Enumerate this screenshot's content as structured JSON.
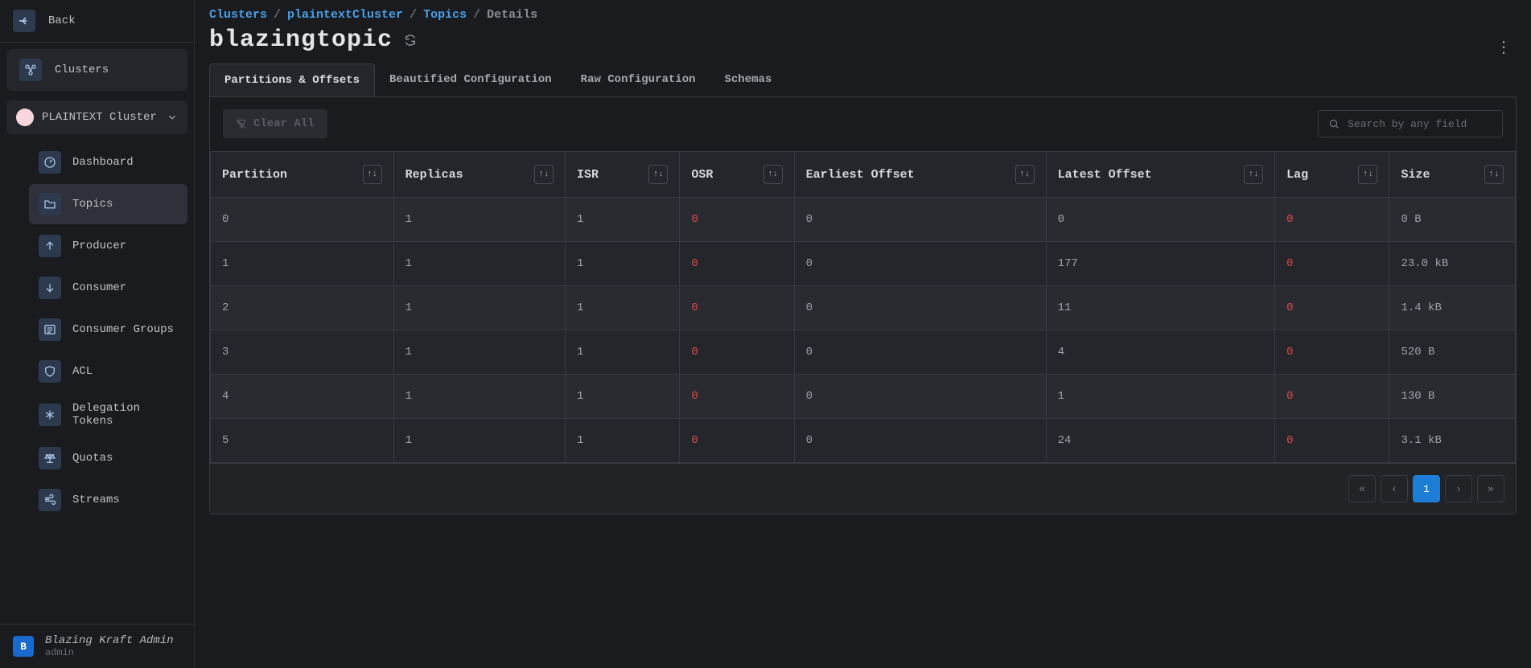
{
  "sidebar": {
    "back": "Back",
    "clusters_label": "Clusters",
    "cluster_selector": "PLAINTEXT Cluster",
    "nav": [
      {
        "label": "Dashboard",
        "icon": "gauge",
        "active": false
      },
      {
        "label": "Topics",
        "icon": "folder",
        "active": true
      },
      {
        "label": "Producer",
        "icon": "upload",
        "active": false
      },
      {
        "label": "Consumer",
        "icon": "download",
        "active": false
      },
      {
        "label": "Consumer Groups",
        "icon": "list",
        "active": false
      },
      {
        "label": "ACL",
        "icon": "shield",
        "active": false
      },
      {
        "label": "Delegation Tokens",
        "icon": "asterisk",
        "active": false
      },
      {
        "label": "Quotas",
        "icon": "scale",
        "active": false
      },
      {
        "label": "Streams",
        "icon": "wind",
        "active": false
      }
    ],
    "footer": {
      "initial": "B",
      "name": "Blazing Kraft Admin",
      "role": "admin"
    }
  },
  "breadcrumbs": {
    "c1": "Clusters",
    "c2": "plaintextCluster",
    "c3": "Topics",
    "c4": "Details"
  },
  "page": {
    "title": "blazingtopic"
  },
  "tabs": [
    {
      "label": "Partitions & Offsets",
      "active": true
    },
    {
      "label": "Beautified Configuration",
      "active": false
    },
    {
      "label": "Raw Configuration",
      "active": false
    },
    {
      "label": "Schemas",
      "active": false
    }
  ],
  "toolbar": {
    "clear_label": "Clear All",
    "search_placeholder": "Search by any field"
  },
  "table": {
    "columns": [
      "Partition",
      "Replicas",
      "ISR",
      "OSR",
      "Earliest Offset",
      "Latest Offset",
      "Lag",
      "Size"
    ],
    "red_columns": [
      3,
      6
    ],
    "rows": [
      [
        "0",
        "1",
        "1",
        "0",
        "0",
        "0",
        "0",
        "0 B"
      ],
      [
        "1",
        "1",
        "1",
        "0",
        "0",
        "177",
        "0",
        "23.0 kB"
      ],
      [
        "2",
        "1",
        "1",
        "0",
        "0",
        "11",
        "0",
        "1.4 kB"
      ],
      [
        "3",
        "1",
        "1",
        "0",
        "0",
        "4",
        "0",
        "520 B"
      ],
      [
        "4",
        "1",
        "1",
        "0",
        "0",
        "1",
        "0",
        "130 B"
      ],
      [
        "5",
        "1",
        "1",
        "0",
        "0",
        "24",
        "0",
        "3.1 kB"
      ]
    ]
  },
  "pagination": {
    "current": "1"
  }
}
